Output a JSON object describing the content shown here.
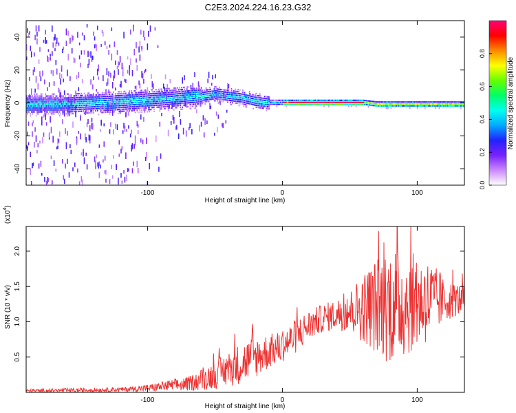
{
  "title": "C2E3.2024.224.16.23.G32",
  "chart_data": [
    {
      "type": "heatmap",
      "xlabel": "Height of straight line (km)",
      "ylabel": "Frequency (Hz)",
      "xlim": [
        -190,
        135
      ],
      "ylim": [
        -50,
        50
      ],
      "xticks": [
        -100,
        0,
        100
      ],
      "yticks": [
        -40,
        -20,
        0,
        20,
        40
      ],
      "colorbar": {
        "label": "Normalized spectral amplitude",
        "range": [
          0,
          1
        ],
        "ticks": [
          "0.0",
          "0.2",
          "0.4",
          "0.6",
          "0.8"
        ],
        "colors": [
          "#ffffff",
          "#cc88ff",
          "#7722ff",
          "#2222ff",
          "#00aaff",
          "#00ffee",
          "#00ff66",
          "#66ff00",
          "#ffff00",
          "#ff8800",
          "#ff0000",
          "#ff0077"
        ]
      },
      "ridge": {
        "x": [
          -190,
          -160,
          -130,
          -110,
          -90,
          -75,
          -60,
          -50,
          -40,
          -30,
          -20,
          -10,
          0,
          10,
          20,
          40,
          60,
          70,
          80,
          100,
          120,
          135
        ],
        "y": [
          -1,
          -1,
          0,
          1,
          2,
          3,
          4,
          5,
          4,
          3,
          1,
          0,
          0,
          0,
          0,
          0,
          0,
          -1,
          -1,
          -1,
          -1,
          -1
        ]
      }
    },
    {
      "type": "line",
      "xlabel": "Height of straight line (km)",
      "ylabel": "SNR (10 * v/v)",
      "y_multiplier_label": "(x10",
      "y_multiplier_exp": "4",
      "y_multiplier_close": ")",
      "xlim": [
        -190,
        135
      ],
      "ylim": [
        0,
        23500
      ],
      "xticks": [
        -100,
        0,
        100
      ],
      "yticks": [
        5000,
        10000,
        15000,
        20000
      ],
      "ytick_labels": [
        "0.5",
        "1.0",
        "1.5",
        "2.0"
      ],
      "color": "#ee3333",
      "envelope": {
        "x": [
          -190,
          -150,
          -120,
          -100,
          -90,
          -80,
          -70,
          -60,
          -50,
          -40,
          -30,
          -20,
          -10,
          0,
          10,
          20,
          30,
          40,
          50,
          60,
          70,
          80,
          90,
          100,
          110,
          120,
          135
        ],
        "mean": [
          200,
          300,
          400,
          600,
          800,
          1000,
          1200,
          1800,
          2500,
          3300,
          4200,
          5000,
          5800,
          6500,
          8000,
          9500,
          10500,
          11000,
          11500,
          12000,
          12300,
          12500,
          12700,
          12800,
          12900,
          13000,
          13200
        ],
        "amplitude": [
          250,
          300,
          300,
          500,
          700,
          900,
          1000,
          1500,
          2000,
          2500,
          3000,
          3000,
          2500,
          2200,
          2500,
          2200,
          2000,
          2200,
          3000,
          5000,
          7000,
          8500,
          8000,
          6500,
          6000,
          3000,
          2000
        ]
      }
    }
  ]
}
